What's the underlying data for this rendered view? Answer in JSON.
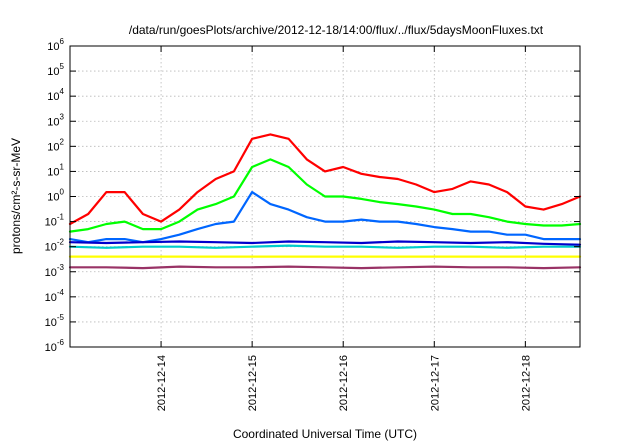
{
  "chart_data": {
    "type": "line",
    "title": "/data/run/goesPlots/archive/2012-12-18/14:00/flux/../flux/5daysMoonFluxes.txt",
    "xlabel": "Coordinated Universal Time (UTC)",
    "ylabel": "protons/cm²-s-sr-MeV",
    "yscale": "log",
    "ylim_exponent": [
      -6,
      6
    ],
    "xlim_days": [
      0,
      5.6
    ],
    "grid": true,
    "legend": "none",
    "x_tick_labels": [
      "2012-12-14",
      "2012-12-15",
      "2012-12-16",
      "2012-12-17",
      "2012-12-18"
    ],
    "x_tick_day": [
      1.0,
      2.0,
      3.0,
      4.0,
      5.0
    ],
    "y_tick_exponents": [
      -6,
      -5,
      -4,
      -3,
      -2,
      -1,
      0,
      1,
      2,
      3,
      4,
      5,
      6
    ],
    "series": [
      {
        "color": "#ff0000",
        "x": [
          0,
          0.2,
          0.4,
          0.6,
          0.8,
          1.0,
          1.2,
          1.4,
          1.6,
          1.8,
          2.0,
          2.2,
          2.4,
          2.6,
          2.8,
          3.0,
          3.2,
          3.4,
          3.6,
          3.8,
          4.0,
          4.2,
          4.4,
          4.6,
          4.8,
          5.0,
          5.2,
          5.4,
          5.6
        ],
        "y": [
          0.08,
          0.2,
          1.5,
          1.5,
          0.2,
          0.1,
          0.3,
          1.5,
          5,
          10,
          200,
          300,
          200,
          30,
          10,
          15,
          8,
          6,
          5,
          3,
          1.5,
          2,
          4,
          3,
          1.5,
          0.4,
          0.3,
          0.5,
          1.0
        ]
      },
      {
        "color": "#00ff00",
        "x": [
          0,
          0.2,
          0.4,
          0.6,
          0.8,
          1.0,
          1.2,
          1.4,
          1.6,
          1.8,
          2.0,
          2.2,
          2.4,
          2.6,
          2.8,
          3.0,
          3.2,
          3.4,
          3.6,
          3.8,
          4.0,
          4.2,
          4.4,
          4.6,
          4.8,
          5.0,
          5.2,
          5.4,
          5.6
        ],
        "y": [
          0.04,
          0.05,
          0.08,
          0.1,
          0.05,
          0.05,
          0.1,
          0.3,
          0.5,
          1,
          15,
          30,
          15,
          3,
          1,
          1,
          0.8,
          0.6,
          0.5,
          0.4,
          0.3,
          0.2,
          0.2,
          0.15,
          0.1,
          0.08,
          0.07,
          0.07,
          0.08
        ]
      },
      {
        "color": "#0066ff",
        "x": [
          0,
          0.2,
          0.4,
          0.6,
          0.8,
          1.0,
          1.2,
          1.4,
          1.6,
          1.8,
          2.0,
          2.2,
          2.4,
          2.6,
          2.8,
          3.0,
          3.2,
          3.4,
          3.6,
          3.8,
          4.0,
          4.2,
          4.4,
          4.6,
          4.8,
          5.0,
          5.2,
          5.4,
          5.6
        ],
        "y": [
          0.02,
          0.015,
          0.02,
          0.02,
          0.015,
          0.02,
          0.03,
          0.05,
          0.08,
          0.1,
          1.5,
          0.5,
          0.3,
          0.15,
          0.1,
          0.1,
          0.12,
          0.1,
          0.1,
          0.08,
          0.06,
          0.05,
          0.04,
          0.04,
          0.03,
          0.03,
          0.02,
          0.02,
          0.02
        ]
      },
      {
        "color": "#00cccc",
        "x": [
          0,
          0.4,
          0.8,
          1.2,
          1.6,
          2.0,
          2.4,
          2.8,
          3.2,
          3.6,
          4.0,
          4.4,
          4.8,
          5.2,
          5.6
        ],
        "y": [
          0.01,
          0.009,
          0.01,
          0.01,
          0.009,
          0.01,
          0.011,
          0.01,
          0.01,
          0.009,
          0.01,
          0.01,
          0.009,
          0.01,
          0.01
        ]
      },
      {
        "color": "#0000cc",
        "x": [
          0,
          0.4,
          0.8,
          1.2,
          1.6,
          2.0,
          2.4,
          2.8,
          3.2,
          3.6,
          4.0,
          4.4,
          4.8,
          5.2,
          5.6
        ],
        "y": [
          0.015,
          0.014,
          0.015,
          0.016,
          0.015,
          0.014,
          0.016,
          0.015,
          0.014,
          0.016,
          0.015,
          0.014,
          0.015,
          0.013,
          0.012
        ]
      },
      {
        "color": "#ffff00",
        "x": [
          0,
          0.4,
          0.8,
          1.2,
          1.6,
          2.0,
          2.4,
          2.8,
          3.2,
          3.6,
          4.0,
          4.4,
          4.8,
          5.2,
          5.6
        ],
        "y": [
          0.004,
          0.004,
          0.004,
          0.004,
          0.004,
          0.004,
          0.004,
          0.004,
          0.004,
          0.004,
          0.004,
          0.004,
          0.004,
          0.004,
          0.004
        ]
      },
      {
        "color": "#993366",
        "x": [
          0,
          0.4,
          0.8,
          1.2,
          1.6,
          2.0,
          2.4,
          2.8,
          3.2,
          3.6,
          4.0,
          4.4,
          4.8,
          5.2,
          5.6
        ],
        "y": [
          0.0015,
          0.0015,
          0.0014,
          0.0016,
          0.0015,
          0.0015,
          0.0016,
          0.0015,
          0.0014,
          0.0015,
          0.0016,
          0.0015,
          0.0015,
          0.0014,
          0.0015
        ]
      }
    ]
  }
}
